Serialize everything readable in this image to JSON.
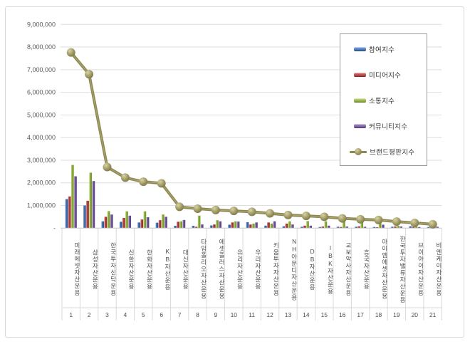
{
  "window": {
    "background": "#ffffff",
    "border_color": "#d8d8d8"
  },
  "chart_data": {
    "type": "combo",
    "bar_type": "clustered-column",
    "title": "",
    "grid": true,
    "legend_position": "inside-top-right",
    "categories": [
      "미래에셋자산운용",
      "삼성자산운용",
      "한국투자신탁운용",
      "신한자산운용",
      "한화자산운용",
      "KB자산운용",
      "대신자산운용",
      "타임폴리오자산운용",
      "에셋플러스자산운용",
      "유리자산운용",
      "우리자산운용",
      "키움투자자산운용",
      "NH아문디자산운용",
      "DB자산운용",
      "IBK자산운용",
      "교보악사자산운용",
      "흥국자산운용",
      "아이엠에셋자산운용",
      "한국투자밸류자산운용",
      "브이아이자산운용",
      "비엔케이자산운용"
    ],
    "ranks": [
      "1",
      "2",
      "3",
      "4",
      "5",
      "6",
      "7",
      "8",
      "9",
      "10",
      "11",
      "12",
      "13",
      "14",
      "15",
      "16",
      "17",
      "18",
      "19",
      "20",
      "21"
    ],
    "series": [
      {
        "name": "참여지수",
        "type": "bar",
        "color": "#3e6fb5",
        "values": [
          1280000,
          1000000,
          300000,
          280000,
          250000,
          240000,
          100000,
          100000,
          120000,
          150000,
          260000,
          110000,
          80000,
          60000,
          50000,
          60000,
          60000,
          50000,
          60000,
          80000,
          50000
        ]
      },
      {
        "name": "미디어지수",
        "type": "bar",
        "color": "#b84543",
        "values": [
          1400000,
          1210000,
          500000,
          450000,
          380000,
          350000,
          280000,
          60000,
          160000,
          250000,
          160000,
          250000,
          200000,
          110000,
          70000,
          50000,
          80000,
          40000,
          70000,
          50000,
          60000
        ]
      },
      {
        "name": "소통지수",
        "type": "bar",
        "color": "#8fb93e",
        "values": [
          2790000,
          2450000,
          750000,
          740000,
          740000,
          600000,
          300000,
          550000,
          350000,
          300000,
          200000,
          200000,
          300000,
          310000,
          300000,
          340000,
          300000,
          300000,
          100000,
          60000,
          50000
        ]
      },
      {
        "name": "커뮤니티지수",
        "type": "bar",
        "color": "#7b5ca5",
        "values": [
          2290000,
          2080000,
          600000,
          550000,
          480000,
          500000,
          360000,
          160000,
          300000,
          290000,
          250000,
          300000,
          160000,
          110000,
          110000,
          70000,
          60000,
          150000,
          70000,
          50000,
          60000
        ]
      },
      {
        "name": "브랜드평판지수",
        "type": "line",
        "color": "#8c8751",
        "values": [
          7760000,
          6800000,
          2700000,
          2230000,
          2050000,
          1980000,
          940000,
          860000,
          800000,
          760000,
          720000,
          650000,
          580000,
          540000,
          500000,
          430000,
          390000,
          360000,
          290000,
          230000,
          170000
        ]
      }
    ],
    "y_axis": {
      "min": 0,
      "max": 9000000,
      "step": 1000000,
      "tick_labels": [
        "-",
        "1,000,000",
        "2,000,000",
        "3,000,000",
        "4,000,000",
        "5,000,000",
        "6,000,000",
        "7,000,000",
        "8,000,000",
        "9,000,000"
      ]
    },
    "x_axis": {
      "levels": [
        "company-name",
        "rank-number"
      ]
    }
  }
}
